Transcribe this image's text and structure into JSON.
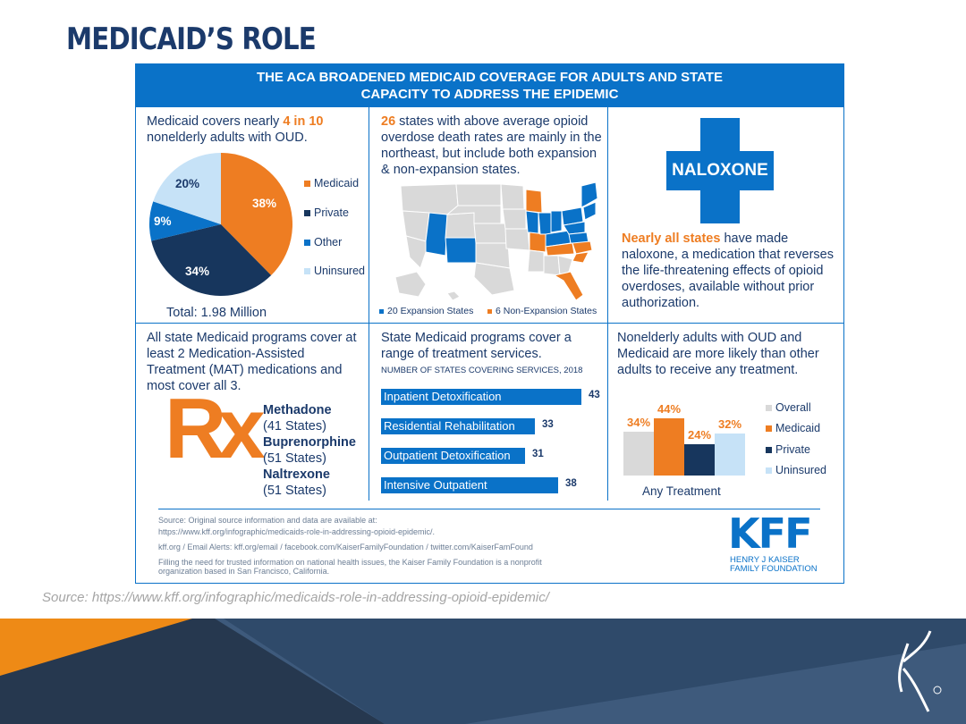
{
  "slide": {
    "title": "MEDICAID’S ROLE",
    "source_citation": "Source: https://www.kff.org/infographic/medicaids-role-in-addressing-opioid-epidemic/"
  },
  "banner": {
    "line1": "THE ACA BROADENED MEDICAID COVERAGE FOR ADULTS AND STATE",
    "line2": "CAPACITY TO ADDRESS THE EPIDEMIC"
  },
  "panel_coverage": {
    "text_prefix": "Medicaid covers nearly ",
    "text_highlight": "4 in 10",
    "text_suffix": "nonelderly adults with OUD.",
    "total": "Total: 1.98 Million"
  },
  "chart_data": [
    {
      "type": "pie",
      "slices": [
        {
          "label": "Medicaid",
          "value": 38,
          "display": "38%",
          "color": "#ee7d22"
        },
        {
          "label": "Private",
          "value": 34,
          "display": "34%",
          "color": "#17365d"
        },
        {
          "label": "Other",
          "value": 9,
          "display": "9%",
          "color": "#0a72c8"
        },
        {
          "label": "Uninsured",
          "value": 20,
          "display": "20%",
          "color": "#c6e2f7"
        }
      ]
    },
    {
      "type": "bar",
      "orientation": "horizontal",
      "title": "NUMBER OF STATES COVERING SERVICES, 2018",
      "categories": [
        "Inpatient Detoxification",
        "Residential Rehabilitation",
        "Outpatient Detoxification",
        "Intensive Outpatient"
      ],
      "values": [
        43,
        33,
        31,
        38
      ],
      "xlim": [
        0,
        43
      ],
      "color": "#0a72c8"
    },
    {
      "type": "bar",
      "categories": [
        "Overall",
        "Medicaid",
        "Private",
        "Uninsured"
      ],
      "values": [
        34,
        44,
        24,
        32
      ],
      "displays": [
        "34%",
        "44%",
        "24%",
        "32%"
      ],
      "colors": [
        "#d9d9d9",
        "#ee7d22",
        "#17365d",
        "#c6e2f7"
      ],
      "xlabel": "Any Treatment",
      "ylim": [
        0,
        44
      ]
    }
  ],
  "panel_map": {
    "text_highlight": "26",
    "text_suffix": "states with above average opioid overdose death rates are mainly in the northeast, but include both expansion & non-expansion states.",
    "legend_expansion": "20 Expansion States",
    "legend_nonexpansion": "6 Non-Expansion States"
  },
  "panel_naloxone": {
    "label": "NALOXONE",
    "text_highlight": "Nearly all states",
    "text_suffix": "have made naloxone, a medication that reverses the life-threatening effects of opioid overdoses, available without prior authorization."
  },
  "panel_mat": {
    "text": "All state Medicaid programs cover at least 2 Medication-Assisted Treatment (MAT) medications and most cover all 3.",
    "rx_symbol": "Rx",
    "meds": [
      {
        "name": "Methadone",
        "states": "(41 States)"
      },
      {
        "name": "Buprenorphine",
        "states": "(51 States)"
      },
      {
        "name": "Naltrexone",
        "states": "(51 States)"
      }
    ]
  },
  "panel_services": {
    "text": "State Medicaid programs cover a range of treatment services."
  },
  "panel_treatment": {
    "text": "Nonelderly adults with OUD and Medicaid are more likely than other adults to receive any treatment."
  },
  "sources": {
    "line1": "Source: Original source information and data are available at:",
    "line2": "https://www.kff.org/infographic/medicaids-role-in-addressing-opioid-epidemic/.",
    "line3": "kff.org / Email Alerts: kff.org/email / facebook.com/KaiserFamilyFoundation / twitter.com/KaiserFamFound",
    "line4": "Filling the need for trusted information on national health issues, the Kaiser Family Foundation is a nonprofit",
    "line5": "organization based in San Francisco, California."
  },
  "kff_logo": {
    "letters": "KFF",
    "line1": "HENRY J KAISER",
    "line2": "FAMILY FOUNDATION"
  },
  "colors": {
    "blue": "#0a72c8",
    "navy": "#17365d",
    "orange": "#ee7d22",
    "light_blue": "#c6e2f7",
    "gray": "#d9d9d9"
  }
}
